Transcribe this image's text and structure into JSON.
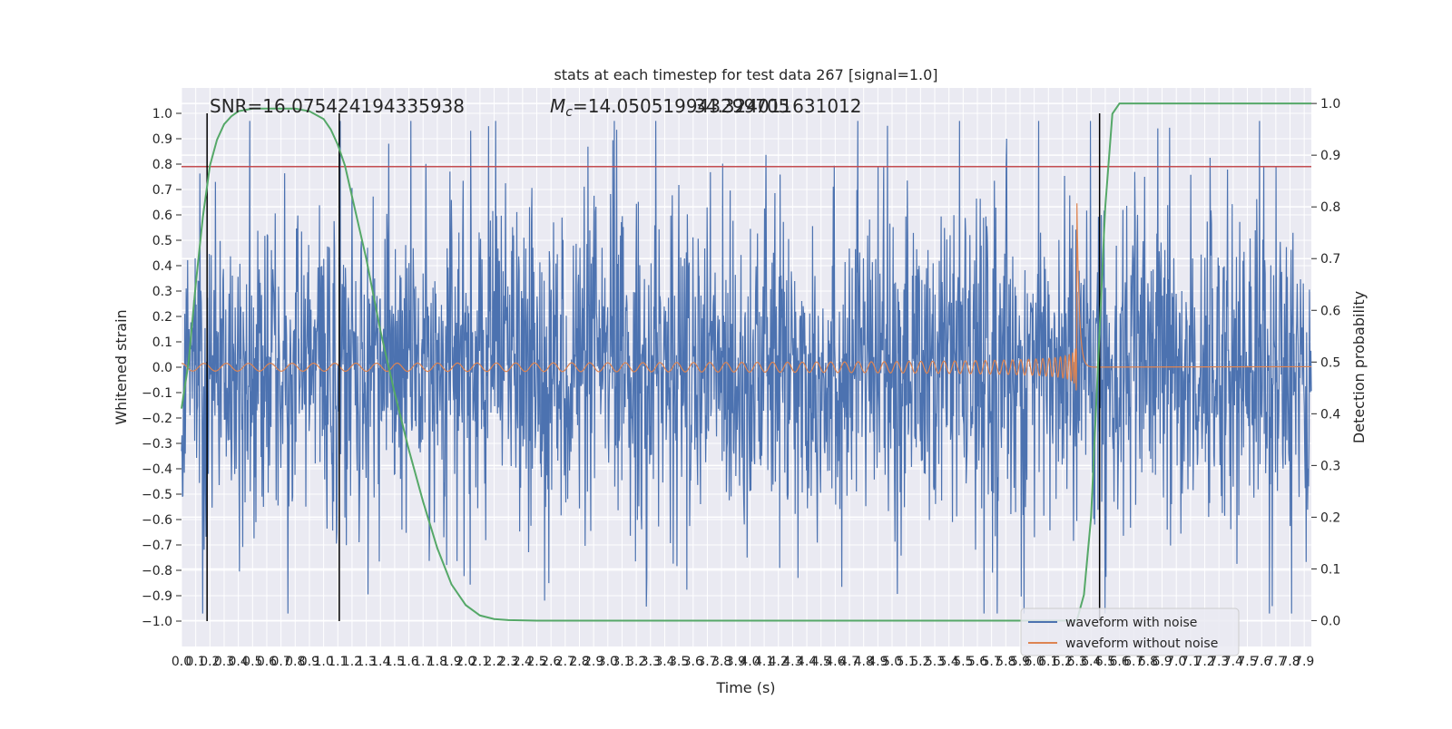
{
  "chart_data": {
    "type": "line",
    "title": "stats at each timestep for test data 267 [signal=1.0]",
    "xlabel": "Time (s)",
    "ylabel": "Whitened strain",
    "y2label": "Detection probability",
    "xlim": [
      0.0,
      7.95
    ],
    "ylim": [
      -1.1,
      1.1
    ],
    "y2lim": [
      -0.05,
      1.03
    ],
    "grid": true,
    "legend_position": "lower-right",
    "xticks": [
      "0.0",
      "0.1",
      "0.2",
      "0.3",
      "0.4",
      "0.5",
      "0.6",
      "0.7",
      "0.8",
      "0.9",
      "1.0",
      "1.1",
      "1.2",
      "1.3",
      "1.4",
      "1.5",
      "1.6",
      "1.7",
      "1.8",
      "1.9",
      "2.0",
      "2.1",
      "2.2",
      "2.3",
      "2.4",
      "2.5",
      "2.6",
      "2.7",
      "2.8",
      "2.9",
      "3.0",
      "3.1",
      "3.2",
      "3.3",
      "3.4",
      "3.5",
      "3.6",
      "3.7",
      "3.8",
      "3.9",
      "4.0",
      "4.1",
      "4.2",
      "4.3",
      "4.4",
      "4.5",
      "4.6",
      "4.7",
      "4.8",
      "4.9",
      "5.0",
      "5.1",
      "5.2",
      "5.3",
      "5.4",
      "5.5",
      "5.6",
      "5.7",
      "5.8",
      "5.9",
      "6.0",
      "6.1",
      "6.2",
      "6.3",
      "6.4",
      "6.5",
      "6.6",
      "6.7",
      "6.8",
      "6.9",
      "7.0",
      "7.1",
      "7.2",
      "7.3",
      "7.4",
      "7.5",
      "7.6",
      "7.7",
      "7.8",
      "7.9"
    ],
    "yticks": [
      "1.0",
      "0.9",
      "0.8",
      "0.7",
      "0.6",
      "0.5",
      "0.4",
      "0.3",
      "0.2",
      "0.1",
      "0.0",
      "−0.1",
      "−0.2",
      "−0.3",
      "−0.4",
      "−0.5",
      "−0.6",
      "−0.7",
      "−0.8",
      "−0.9",
      "−1.0"
    ],
    "y2ticks": [
      "1.0",
      "0.9",
      "0.8",
      "0.7",
      "0.6",
      "0.5",
      "0.4",
      "0.3",
      "0.2",
      "0.1",
      "0.0"
    ],
    "annotations": {
      "snr": "SNR=16.075424194335938",
      "mc_symbol": "M",
      "mc_subscript": "c",
      "mc_value": "=14.050519943299705",
      "mc_overlap": "34.324011631012"
    },
    "threshold": {
      "value": 0.79,
      "color": "#c44e52"
    },
    "vlines": [
      0.18,
      1.11,
      6.46
    ],
    "series": [
      {
        "name": "waveform with noise",
        "color": "#4c72b0",
        "noise_amplitude": 0.45,
        "peak": 0.97
      },
      {
        "name": "waveform without noise",
        "color": "#dd8452",
        "start_amplitude": 0.015,
        "peak_amplitude": 0.67,
        "merger_time": 6.3
      },
      {
        "color": "#55a868",
        "axis": "right",
        "x": [
          0.0,
          0.05,
          0.1,
          0.15,
          0.2,
          0.25,
          0.3,
          0.35,
          0.4,
          0.5,
          0.6,
          0.7,
          0.8,
          0.9,
          1.0,
          1.05,
          1.1,
          1.15,
          1.2,
          1.3,
          1.4,
          1.5,
          1.6,
          1.7,
          1.8,
          1.9,
          2.0,
          2.1,
          2.2,
          2.3,
          2.5,
          3.0,
          4.0,
          5.0,
          6.0,
          6.2,
          6.3,
          6.35,
          6.4,
          6.45,
          6.5,
          6.55,
          6.6,
          6.7,
          6.8,
          7.0,
          7.5,
          7.95
        ],
        "y": [
          0.41,
          0.5,
          0.65,
          0.78,
          0.88,
          0.93,
          0.96,
          0.975,
          0.985,
          0.99,
          0.99,
          0.99,
          0.99,
          0.985,
          0.97,
          0.95,
          0.92,
          0.88,
          0.82,
          0.7,
          0.56,
          0.44,
          0.33,
          0.23,
          0.14,
          0.07,
          0.03,
          0.01,
          0.003,
          0.001,
          0.0,
          0.0,
          0.0,
          0.0,
          0.0,
          0.0,
          0.0,
          0.05,
          0.2,
          0.5,
          0.8,
          0.98,
          1.0,
          1.0,
          1.0,
          1.0,
          1.0,
          1.0
        ]
      }
    ]
  }
}
